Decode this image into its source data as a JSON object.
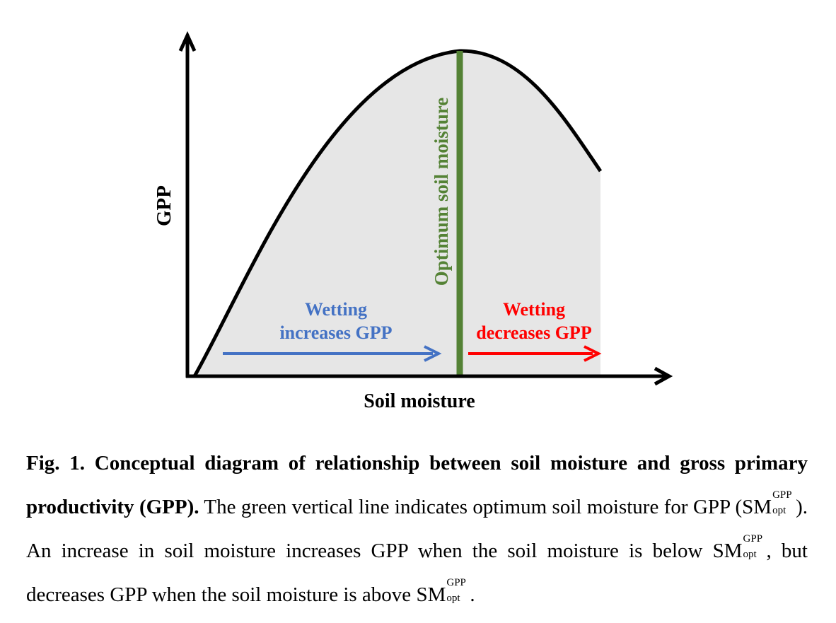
{
  "diagram": {
    "y_axis_label": "GPP",
    "x_axis_label": "Soil moisture",
    "optimum_label": "Optimum soil moisture",
    "left_arrow_line1": "Wetting",
    "left_arrow_line2": "increases GPP",
    "right_arrow_line1": "Wetting",
    "right_arrow_line2": "decreases GPP",
    "colors": {
      "curve": "#000000",
      "fill": "#e6e6e6",
      "optimum_line": "#548235",
      "increase": "#4472c4",
      "decrease": "#ff0000"
    }
  },
  "caption": {
    "title": "Fig. 1. Conceptual diagram of relationship between soil moisture and gross primary productivity (GPP).",
    "t1": " The green vertical line indicates optimum soil moisture for GPP (",
    "sm": "SM",
    "sup": "GPP",
    "sub": "opt",
    "t2": "). An increase in soil moisture increases GPP when the soil moisture is below ",
    "t3": ", but decreases GPP when the soil moisture is above ",
    "t4": "."
  }
}
